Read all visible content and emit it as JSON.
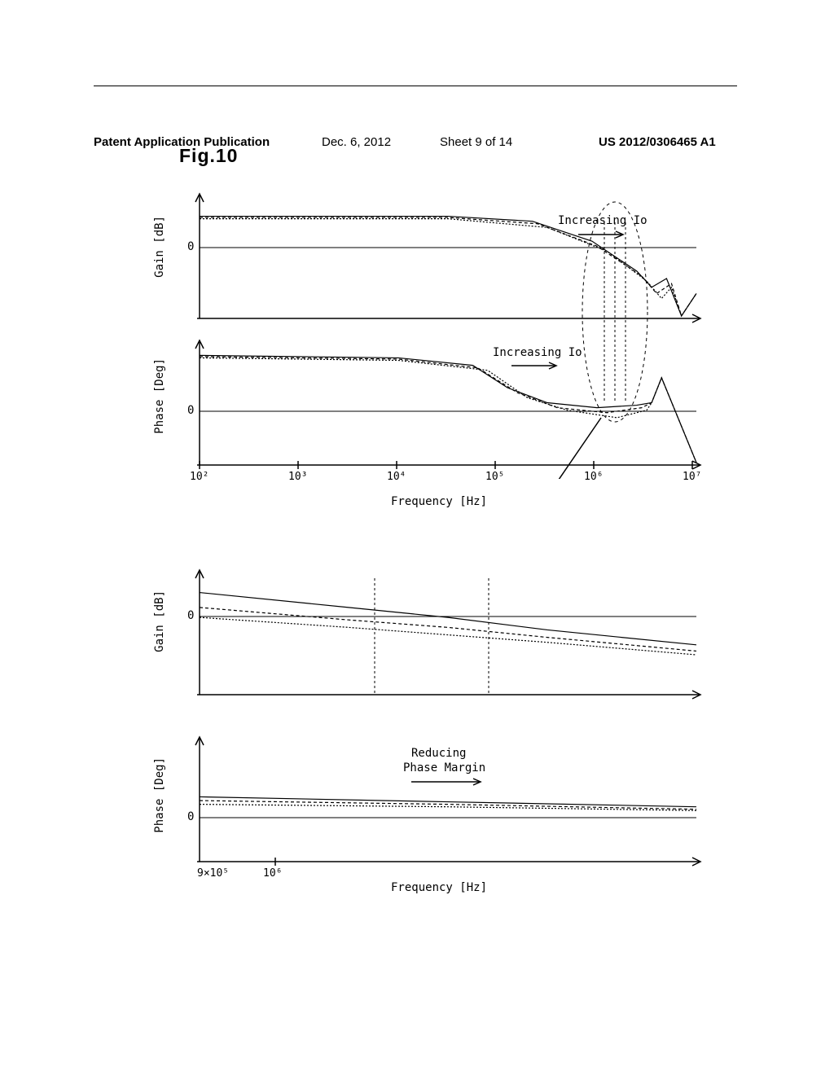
{
  "header": {
    "publication": "Patent Application Publication",
    "date": "Dec. 6, 2012",
    "sheet": "Sheet 9 of 14",
    "pubnum": "US 2012/0306465 A1"
  },
  "fig_title": "Fig.10",
  "charts": {
    "gain1": {
      "type": "line",
      "ylabel": "Gain [dB]",
      "zero_y": 0.45,
      "annotation": "Increasing Io",
      "background_color": "#ffffff",
      "stroke": "#000000",
      "curves": [
        {
          "points": [
            [
              0,
              0.18
            ],
            [
              0.5,
              0.18
            ],
            [
              0.67,
              0.22
            ],
            [
              0.79,
              0.38
            ],
            [
              0.88,
              0.62
            ],
            [
              0.91,
              0.75
            ],
            [
              0.94,
              0.68
            ],
            [
              0.97,
              0.98
            ],
            [
              1.0,
              0.8
            ]
          ],
          "dash": ""
        },
        {
          "points": [
            [
              0,
              0.19
            ],
            [
              0.5,
              0.19
            ],
            [
              0.68,
              0.24
            ],
            [
              0.8,
              0.42
            ],
            [
              0.89,
              0.66
            ],
            [
              0.92,
              0.8
            ],
            [
              0.95,
              0.72
            ],
            [
              0.97,
              0.98
            ],
            [
              1.0,
              0.8
            ]
          ],
          "dash": "4,3"
        },
        {
          "points": [
            [
              0,
              0.2
            ],
            [
              0.5,
              0.2
            ],
            [
              0.7,
              0.27
            ],
            [
              0.82,
              0.46
            ],
            [
              0.9,
              0.7
            ],
            [
              0.93,
              0.84
            ],
            [
              0.95,
              0.75
            ],
            [
              0.97,
              0.98
            ],
            [
              1.0,
              0.8
            ]
          ],
          "dash": "2,2"
        }
      ]
    },
    "phase1": {
      "type": "line",
      "ylabel": "Phase [Deg]",
      "zero_y": 0.58,
      "annotation": "Increasing Io",
      "xlabel": "Frequency [Hz]",
      "xticks": [
        "10²",
        "10³",
        "10⁴",
        "10⁵",
        "10⁶",
        "10⁷"
      ],
      "background_color": "#ffffff",
      "stroke": "#000000",
      "curves": [
        {
          "points": [
            [
              0,
              0.12
            ],
            [
              0.4,
              0.14
            ],
            [
              0.55,
              0.2
            ],
            [
              0.62,
              0.38
            ],
            [
              0.7,
              0.5
            ],
            [
              0.8,
              0.54
            ],
            [
              0.88,
              0.52
            ],
            [
              0.91,
              0.5
            ],
            [
              0.93,
              0.3
            ],
            [
              1.0,
              0.98
            ]
          ],
          "dash": ""
        },
        {
          "points": [
            [
              0,
              0.13
            ],
            [
              0.4,
              0.15
            ],
            [
              0.56,
              0.22
            ],
            [
              0.64,
              0.42
            ],
            [
              0.72,
              0.54
            ],
            [
              0.82,
              0.58
            ],
            [
              0.89,
              0.54
            ],
            [
              0.91,
              0.5
            ],
            [
              0.93,
              0.3
            ],
            [
              1.0,
              0.98
            ]
          ],
          "dash": "4,3"
        },
        {
          "points": [
            [
              0,
              0.14
            ],
            [
              0.4,
              0.16
            ],
            [
              0.58,
              0.24
            ],
            [
              0.66,
              0.46
            ],
            [
              0.74,
              0.56
            ],
            [
              0.84,
              0.62
            ],
            [
              0.9,
              0.56
            ],
            [
              0.91,
              0.5
            ],
            [
              0.93,
              0.3
            ],
            [
              1.0,
              0.98
            ]
          ],
          "dash": "2,2"
        }
      ]
    },
    "gain2": {
      "type": "line",
      "ylabel": "Gain [dB]",
      "zero_y": 0.4,
      "background_color": "#ffffff",
      "stroke": "#000000",
      "curves": [
        {
          "points": [
            [
              0,
              0.18
            ],
            [
              0.3,
              0.3
            ],
            [
              0.5,
              0.38
            ],
            [
              0.7,
              0.48
            ],
            [
              1.0,
              0.6
            ]
          ],
          "dash": ""
        },
        {
          "points": [
            [
              0,
              0.3
            ],
            [
              0.3,
              0.4
            ],
            [
              0.5,
              0.46
            ],
            [
              0.7,
              0.54
            ],
            [
              1.0,
              0.65
            ]
          ],
          "dash": "4,3"
        },
        {
          "points": [
            [
              0,
              0.38
            ],
            [
              0.3,
              0.46
            ],
            [
              0.5,
              0.52
            ],
            [
              0.7,
              0.58
            ],
            [
              1.0,
              0.68
            ]
          ],
          "dash": "2,2"
        }
      ],
      "vlines": [
        0.35,
        0.58
      ]
    },
    "phase2": {
      "type": "line",
      "ylabel": "Phase [Deg]",
      "zero_y": 0.65,
      "annotation_top": "Reducing",
      "annotation_bottom": "Phase Margin",
      "xlabel": "Frequency [Hz]",
      "xticks": [
        "9×10⁵",
        "10⁶"
      ],
      "xtick_positions": [
        0.03,
        0.15
      ],
      "background_color": "#ffffff",
      "stroke": "#000000",
      "curves": [
        {
          "points": [
            [
              0,
              0.48
            ],
            [
              0.5,
              0.52
            ],
            [
              1.0,
              0.56
            ]
          ],
          "dash": ""
        },
        {
          "points": [
            [
              0,
              0.51
            ],
            [
              0.5,
              0.54
            ],
            [
              1.0,
              0.58
            ]
          ],
          "dash": "4,3"
        },
        {
          "points": [
            [
              0,
              0.54
            ],
            [
              0.5,
              0.56
            ],
            [
              1.0,
              0.59
            ]
          ],
          "dash": "2,2"
        }
      ]
    }
  },
  "colors": {
    "axis": "#000000",
    "curve": "#000000",
    "ellipse": "#000000"
  }
}
